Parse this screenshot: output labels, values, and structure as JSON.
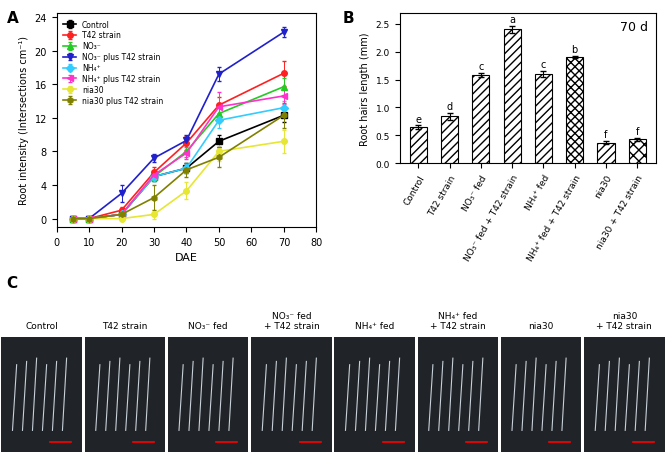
{
  "chart_data": [
    {
      "panel_label": "A",
      "type": "line",
      "x_label": "DAE",
      "y_label": "Root intensity (Intersections cm⁻¹)",
      "x": [
        5,
        10,
        20,
        30,
        40,
        50,
        70
      ],
      "xlim": [
        0,
        80
      ],
      "xticks": [
        0,
        10,
        20,
        30,
        40,
        50,
        60,
        70,
        80
      ],
      "ylim": [
        -1,
        24.5
      ],
      "yticks": [
        0,
        4,
        8,
        12,
        16,
        20,
        24
      ],
      "legend": "upper left",
      "series": [
        {
          "name": "Control",
          "color": "#000000",
          "marker": "square",
          "values": [
            0,
            0,
            0.5,
            5.0,
            6.0,
            9.2,
            12.3
          ],
          "errors": [
            0,
            0,
            0.3,
            0.5,
            0.6,
            0.7,
            0.8
          ]
        },
        {
          "name": "T42 strain",
          "color": "#ff2020",
          "marker": "circle",
          "values": [
            0,
            0,
            1.0,
            5.5,
            9.0,
            13.5,
            17.3
          ],
          "errors": [
            0,
            0,
            0.4,
            0.6,
            0.8,
            1.0,
            1.5
          ]
        },
        {
          "name": "NO₃⁻",
          "color": "#22cc22",
          "marker": "triangle_up",
          "values": [
            0,
            0,
            0.5,
            5.0,
            8.0,
            12.5,
            15.7
          ],
          "errors": [
            0,
            0,
            0.3,
            0.5,
            0.7,
            0.9,
            1.0
          ]
        },
        {
          "name": "NO₃⁻ plus T42 strain",
          "color": "#2020cc",
          "marker": "triangle_down",
          "values": [
            0,
            0,
            3.0,
            7.2,
            9.3,
            17.2,
            22.2
          ],
          "errors": [
            0,
            0,
            1.0,
            0.5,
            0.6,
            0.8,
            0.6
          ]
        },
        {
          "name": "NH₄⁺",
          "color": "#33ccff",
          "marker": "diamond",
          "values": [
            0,
            0,
            0.5,
            5.0,
            6.0,
            11.7,
            13.2
          ],
          "errors": [
            0,
            0,
            0.3,
            0.5,
            0.6,
            0.9,
            0.8
          ]
        },
        {
          "name": "NH₄⁺ plus T42 strain",
          "color": "#ff33cc",
          "marker": "triangle_left",
          "values": [
            0,
            0,
            0.5,
            5.2,
            7.8,
            13.3,
            14.6
          ],
          "errors": [
            0,
            0,
            0.3,
            0.5,
            0.7,
            1.8,
            1.0
          ]
        },
        {
          "name": "nia30",
          "color": "#e6e633",
          "marker": "circle",
          "values": [
            0,
            0,
            0,
            0.5,
            3.3,
            8.0,
            9.2
          ],
          "errors": [
            0,
            0,
            0,
            0.5,
            1.0,
            1.2,
            1.4
          ]
        },
        {
          "name": "nia30 plus T42 strain",
          "color": "#808000",
          "marker": "hexagon",
          "values": [
            0,
            0,
            0.5,
            2.5,
            5.8,
            7.3,
            12.3
          ],
          "errors": [
            0,
            0,
            0.3,
            1.5,
            0.8,
            1.2,
            1.5
          ]
        }
      ]
    },
    {
      "panel_label": "B",
      "type": "bar",
      "annotation": "70 d",
      "y_label": "Root hairs length (mm)",
      "categories": [
        "Control",
        "T42 strain",
        "NO₃⁻ fed",
        "NO₃⁻ fed + T42 strain",
        "NH₄⁺ fed",
        "NH₄⁺ fed + T42 strain",
        "nia30",
        "nia30 + T42 strain"
      ],
      "values": [
        0.65,
        0.84,
        1.58,
        2.4,
        1.6,
        1.91,
        0.37,
        0.43
      ],
      "errors": [
        0.03,
        0.06,
        0.04,
        0.06,
        0.06,
        0.02,
        0.03,
        0.03
      ],
      "significance_letters": [
        "e",
        "d",
        "c",
        "a",
        "c",
        "b",
        "f",
        "f"
      ],
      "color": "#ffffff",
      "ylim": [
        0,
        2.7
      ],
      "yticks": [
        {
          "value": 0,
          "label": "0.0"
        },
        {
          "value": 0.5,
          "label": "0.5"
        },
        {
          "value": 1,
          "label": "1.0"
        },
        {
          "value": 1.5,
          "label": "1.5"
        },
        {
          "value": 2,
          "label": "2.0"
        },
        {
          "value": 2.5,
          "label": "2.5"
        }
      ]
    }
  ],
  "image_panel": {
    "panel_label": "C",
    "labels": [
      "Control",
      "T42 strain",
      "NO₃⁻ fed",
      "NO₃⁻ fed\n+ T42 strain",
      "NH₄⁺ fed",
      "NH₄⁺ fed\n+ T42 strain",
      "nia30",
      "nia30\n+ T42 strain"
    ]
  }
}
